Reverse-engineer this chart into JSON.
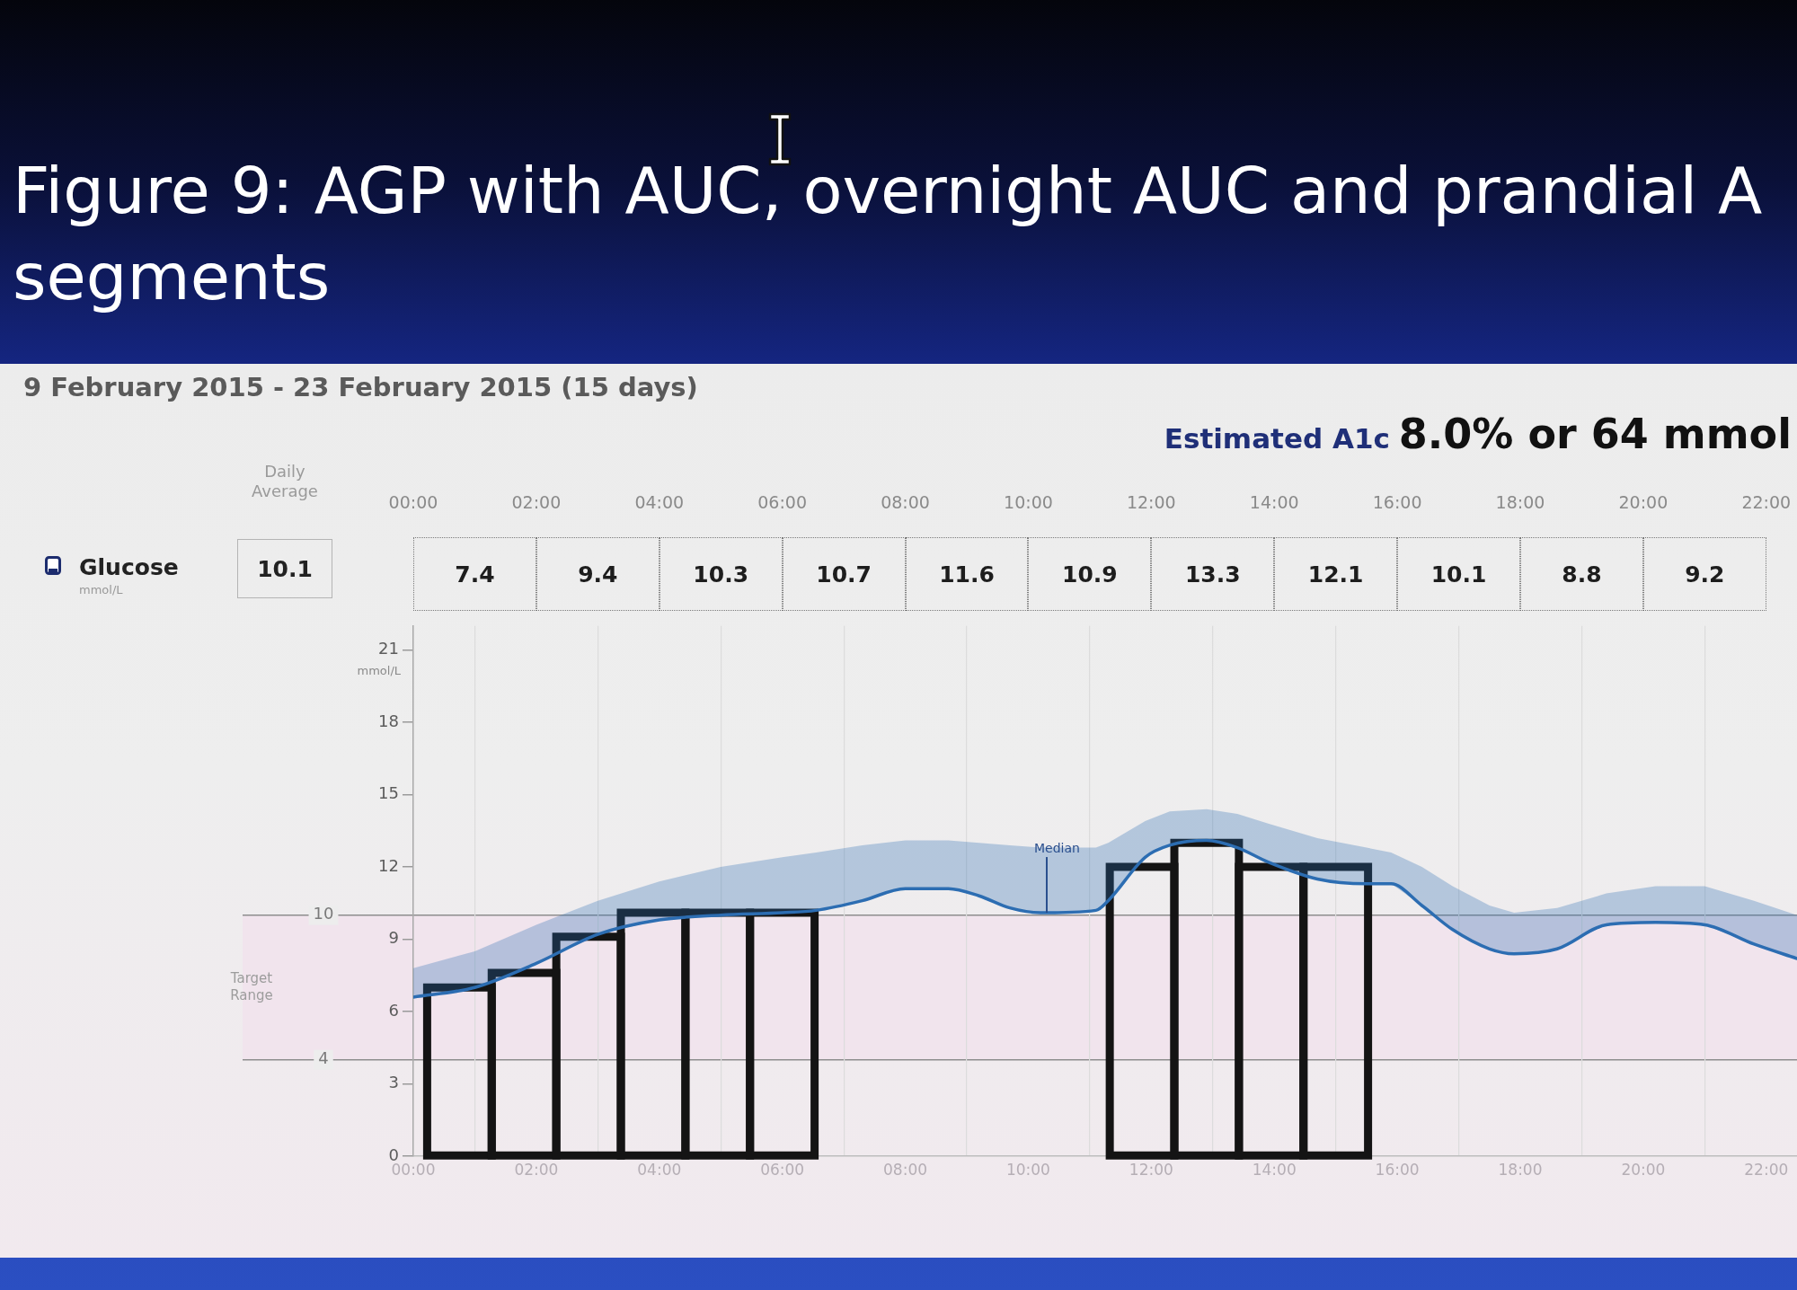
{
  "chart_data": [
    {
      "type": "heatmap",
      "title": "Figure 9: AGP with AUC, overnight AUC and prandial A\nsegments",
      "subtitle": "9 February 2015 - 23 February 2015 (15 days)",
      "annotations": [
        "Estimated A1c",
        "8.0% or 64 mmol"
      ],
      "categories": [
        "Daily Average"
      ],
      "y_categories": [
        "Glucose"
      ],
      "ylabel": "mmol/L",
      "cells": [
        [
          10.1
        ]
      ],
      "data_labels": true
    },
    {
      "type": "heatmap",
      "x": [
        1,
        3,
        5,
        7,
        9,
        11,
        13,
        15,
        17,
        19,
        21
      ],
      "xlim": [
        0,
        22.5
      ],
      "xticks": [
        {
          "value": 0,
          "label": "00:00"
        },
        {
          "value": 2,
          "label": "02:00"
        },
        {
          "value": 4,
          "label": "04:00"
        },
        {
          "value": 6,
          "label": "06:00"
        },
        {
          "value": 8,
          "label": "08:00"
        },
        {
          "value": 10,
          "label": "10:00"
        },
        {
          "value": 12,
          "label": "12:00"
        },
        {
          "value": 14,
          "label": "14:00"
        },
        {
          "value": 16,
          "label": "16:00"
        },
        {
          "value": 18,
          "label": "18:00"
        },
        {
          "value": 20,
          "label": "20:00"
        },
        {
          "value": 22,
          "label": "22:00"
        }
      ],
      "y_categories": [
        null
      ],
      "cells": [
        [
          7.4,
          9.4,
          10.3,
          10.7,
          11.6,
          10.9,
          13.3,
          12.1,
          10.1,
          8.8,
          9.2
        ]
      ],
      "data_labels": true
    },
    {
      "type": "line",
      "ylabel": "mmol/L",
      "xlim": [
        0,
        22.5
      ],
      "xticks": [
        {
          "value": 0,
          "label": "00:00"
        },
        {
          "value": 2,
          "label": "02:00"
        },
        {
          "value": 4,
          "label": "04:00"
        },
        {
          "value": 6,
          "label": "06:00"
        },
        {
          "value": 8,
          "label": "08:00"
        },
        {
          "value": 10,
          "label": "10:00"
        },
        {
          "value": 12,
          "label": "12:00"
        },
        {
          "value": 14,
          "label": "14:00"
        },
        {
          "value": 16,
          "label": "16:00"
        },
        {
          "value": 18,
          "label": "18:00"
        },
        {
          "value": 20,
          "label": "20:00"
        },
        {
          "value": 22,
          "label": "22:00"
        }
      ],
      "ylim": [
        0,
        22
      ],
      "yticks": [
        0,
        3,
        6,
        9,
        12,
        15,
        18,
        21
      ],
      "grid": "x",
      "series": [
        {
          "type": "line",
          "color": "#2c6db2",
          "x": [
            0,
            1,
            2,
            3,
            4,
            5,
            6,
            6.55,
            7.3,
            8.0,
            8.7,
            9.2,
            9.7,
            10.2,
            11.1,
            11.3,
            11.9,
            12.3,
            12.9,
            13.4,
            13.9,
            14.7,
            15.5,
            15.9,
            16.4,
            16.9,
            17.5,
            17.9,
            18.6,
            19.4,
            20.2,
            21.0,
            21.8,
            22.5
          ],
          "values": [
            6.6,
            7.0,
            8.0,
            9.2,
            9.8,
            10.0,
            10.1,
            10.2,
            10.6,
            11.1,
            11.1,
            10.8,
            10.3,
            10.1,
            10.2,
            10.6,
            12.4,
            12.9,
            13.1,
            12.8,
            12.2,
            11.5,
            11.3,
            11.3,
            10.4,
            9.4,
            8.6,
            8.4,
            8.6,
            9.6,
            9.7,
            9.6,
            8.8,
            8.2
          ],
          "lower": [
            6.6,
            7.0,
            8.0,
            9.2,
            9.8,
            10.0,
            10.1,
            10.2,
            10.6,
            11.1,
            11.1,
            10.8,
            10.3,
            10.1,
            10.2,
            10.6,
            12.4,
            12.9,
            13.1,
            12.8,
            12.2,
            11.5,
            11.3,
            11.3,
            10.4,
            9.4,
            8.6,
            8.4,
            8.6,
            9.6,
            9.7,
            9.6,
            8.8,
            8.2
          ],
          "upper": [
            7.8,
            8.5,
            9.6,
            10.6,
            11.4,
            12.0,
            12.4,
            12.6,
            12.9,
            13.1,
            13.1,
            13.0,
            12.9,
            12.8,
            12.8,
            13.0,
            13.9,
            14.3,
            14.4,
            14.2,
            13.8,
            13.2,
            12.8,
            12.6,
            12.0,
            11.2,
            10.4,
            10.1,
            10.3,
            10.9,
            11.2,
            11.2,
            10.6,
            10.0
          ]
        },
        {
          "type": "bar",
          "color": "#141414",
          "x": [
            0.75,
            1.8,
            2.85,
            3.9,
            4.95,
            6.0,
            11.85,
            12.9,
            13.95,
            15.0
          ],
          "values": [
            7.0,
            7.6,
            9.1,
            10.1,
            10.1,
            10.1,
            12.0,
            13.0,
            12.0,
            12.0
          ]
        }
      ],
      "ref_lines": [
        {
          "axis": "y",
          "value": 10,
          "label": "10"
        },
        {
          "axis": "y",
          "value": 4,
          "label": "4"
        }
      ],
      "bands": [
        {
          "axis": "y",
          "from": 4,
          "to": 10,
          "label": "Target Range",
          "color": "#f1e4ed"
        }
      ],
      "annotations": [
        {
          "text": "Median",
          "x": 10.3,
          "y": 10.1
        }
      ]
    }
  ]
}
